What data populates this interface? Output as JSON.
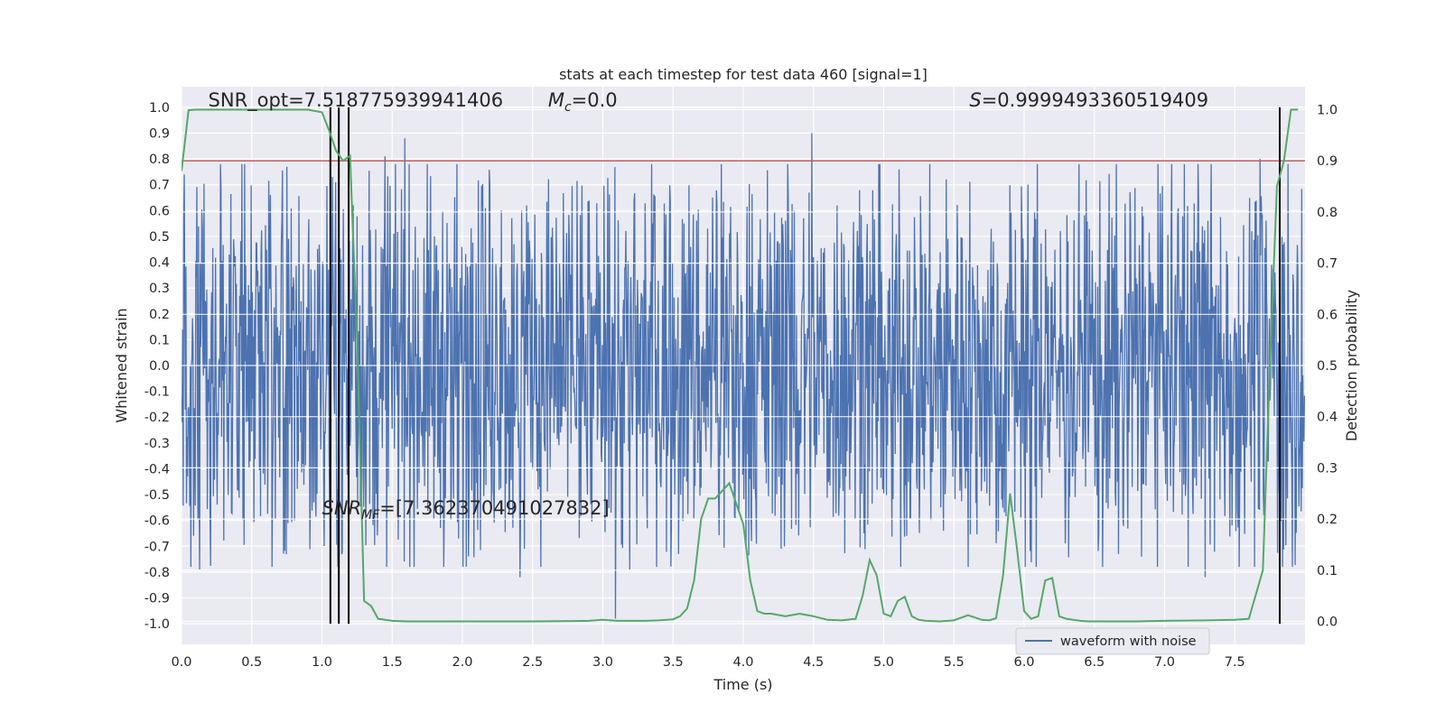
{
  "chart_data": {
    "type": "line",
    "title": "stats at each timestep for test data 460 [signal=1]",
    "xlabel": "Time (s)",
    "ylabel_left": "Whitened strain",
    "ylabel_right": "Detection probability",
    "xlim": [
      0.0,
      8.0
    ],
    "ylim_left": [
      -1.08,
      1.08
    ],
    "ylim_right": [
      -0.045,
      1.045
    ],
    "x_ticks": [
      "0.0",
      "0.5",
      "1.0",
      "1.5",
      "2.0",
      "2.5",
      "3.0",
      "3.5",
      "4.0",
      "4.5",
      "5.0",
      "5.5",
      "6.0",
      "6.5",
      "7.0",
      "7.5"
    ],
    "x_tick_values": [
      0.0,
      0.5,
      1.0,
      1.5,
      2.0,
      2.5,
      3.0,
      3.5,
      4.0,
      4.5,
      5.0,
      5.5,
      6.0,
      6.5,
      7.0,
      7.5
    ],
    "y_left_ticks": [
      "1.0",
      "0.9",
      "0.8",
      "0.7",
      "0.6",
      "0.5",
      "0.4",
      "0.3",
      "0.2",
      "0.1",
      "0.0",
      "-0.1",
      "-0.2",
      "-0.3",
      "-0.4",
      "-0.5",
      "-0.6",
      "-0.7",
      "-0.8",
      "-0.9",
      "-1.0"
    ],
    "y_left_tick_values": [
      1.0,
      0.9,
      0.8,
      0.7,
      0.6,
      0.5,
      0.4,
      0.3,
      0.2,
      0.1,
      0.0,
      -0.1,
      -0.2,
      -0.3,
      -0.4,
      -0.5,
      -0.6,
      -0.7,
      -0.8,
      -0.9,
      -1.0
    ],
    "y_right_ticks": [
      "1.0",
      "0.9",
      "0.8",
      "0.7",
      "0.6",
      "0.5",
      "0.4",
      "0.3",
      "0.2",
      "0.1",
      "0.0"
    ],
    "y_right_tick_values": [
      1.0,
      0.9,
      0.8,
      0.7,
      0.6,
      0.5,
      0.4,
      0.3,
      0.2,
      0.1,
      0.0
    ],
    "grid": true,
    "legend_position": "bottom-right",
    "series": [
      {
        "name": "waveform with noise",
        "axis": "left",
        "color": "#4c72b0",
        "style": "dense-noise",
        "sample_rate_hz": 256,
        "duration_s": 8.0,
        "envelope": {
          "band_core": 0.4,
          "typical_peak": 0.65,
          "max_abs": 1.0
        },
        "notable_peaks": [
          {
            "x": 0.02,
            "y": 0.74
          },
          {
            "x": 0.13,
            "y": -0.79
          },
          {
            "x": 0.45,
            "y": 0.78
          },
          {
            "x": 0.75,
            "y": 0.77
          },
          {
            "x": 1.45,
            "y": 0.81
          },
          {
            "x": 1.59,
            "y": 0.88
          },
          {
            "x": 2.41,
            "y": -0.82
          },
          {
            "x": 3.09,
            "y": -0.98
          },
          {
            "x": 3.19,
            "y": -0.79
          },
          {
            "x": 4.49,
            "y": 1.0
          },
          {
            "x": 4.49,
            "y": 0.9
          },
          {
            "x": 7.29,
            "y": -0.82
          },
          {
            "x": 7.68,
            "y": 0.8
          },
          {
            "x": 7.88,
            "y": 0.78
          }
        ]
      },
      {
        "name": "detection probability",
        "axis": "right",
        "color": "#55a868",
        "style": "line",
        "x": [
          0.0,
          0.05,
          0.1,
          0.15,
          0.2,
          0.3,
          0.4,
          0.5,
          0.6,
          0.7,
          0.8,
          0.9,
          1.0,
          1.05,
          1.1,
          1.15,
          1.2,
          1.25,
          1.3,
          1.35,
          1.4,
          1.5,
          1.6,
          1.7,
          2.0,
          2.5,
          2.9,
          3.0,
          3.1,
          3.2,
          3.3,
          3.4,
          3.5,
          3.55,
          3.6,
          3.65,
          3.7,
          3.75,
          3.8,
          3.85,
          3.9,
          3.95,
          4.0,
          4.05,
          4.1,
          4.15,
          4.2,
          4.3,
          4.4,
          4.5,
          4.6,
          4.7,
          4.8,
          4.85,
          4.9,
          4.95,
          5.0,
          5.05,
          5.1,
          5.15,
          5.2,
          5.25,
          5.3,
          5.4,
          5.5,
          5.6,
          5.7,
          5.75,
          5.8,
          5.85,
          5.9,
          5.95,
          6.0,
          6.05,
          6.1,
          6.15,
          6.2,
          6.25,
          6.3,
          6.35,
          6.4,
          6.45,
          6.5,
          6.6,
          6.8,
          7.0,
          7.3,
          7.5,
          7.6,
          7.7,
          7.75,
          7.8,
          7.85,
          7.9,
          7.95
        ],
        "values": [
          0.88,
          0.999,
          1.0,
          1.0,
          1.0,
          1.0,
          1.0,
          1.0,
          1.0,
          1.0,
          1.0,
          1.0,
          0.995,
          0.96,
          0.92,
          0.9,
          0.91,
          0.55,
          0.04,
          0.03,
          0.005,
          0.001,
          0.0,
          0.0,
          0.0,
          0.0,
          0.001,
          0.003,
          0.001,
          0.001,
          0.001,
          0.002,
          0.004,
          0.01,
          0.025,
          0.08,
          0.2,
          0.24,
          0.24,
          0.255,
          0.27,
          0.23,
          0.19,
          0.08,
          0.02,
          0.015,
          0.015,
          0.01,
          0.015,
          0.01,
          0.003,
          0.002,
          0.005,
          0.05,
          0.12,
          0.09,
          0.015,
          0.01,
          0.04,
          0.048,
          0.01,
          0.003,
          0.001,
          0.0,
          0.002,
          0.012,
          0.003,
          0.002,
          0.006,
          0.09,
          0.25,
          0.14,
          0.02,
          0.005,
          0.01,
          0.08,
          0.085,
          0.01,
          0.005,
          0.003,
          0.001,
          0.0,
          0.0,
          0.0,
          0.0,
          0.001,
          0.002,
          0.003,
          0.005,
          0.1,
          0.5,
          0.85,
          0.9,
          1.0,
          1.0
        ]
      }
    ],
    "threshold_line": {
      "axis": "right",
      "value": 0.9,
      "color": "#c44e52"
    },
    "vertical_markers": {
      "x": [
        1.06,
        1.12,
        1.19,
        7.82
      ],
      "y_from": -1.0,
      "y_to": 1.0,
      "color": "#000000"
    },
    "annotations": [
      {
        "id": "snr-opt",
        "text": "SNR_opt=7.518775939941406",
        "x": 0.19,
        "y": 1.0
      },
      {
        "id": "chirp-mass",
        "text": "M_c=0.0",
        "main": "M",
        "sub": "c",
        "rest": "=0.0",
        "x": 2.61,
        "y": 1.0
      },
      {
        "id": "s-stat",
        "text": "S=0.9999493360519409",
        "main": "S",
        "rest": "=0.9999493360519409",
        "x": 5.61,
        "y": 1.0
      },
      {
        "id": "snr-mf",
        "text": "SNR_MF=[7.362370491027832]",
        "main": "SNR",
        "sub": "MF",
        "rest": "=[7.362370491027832]",
        "x": 1.0,
        "y": -0.58
      }
    ]
  }
}
